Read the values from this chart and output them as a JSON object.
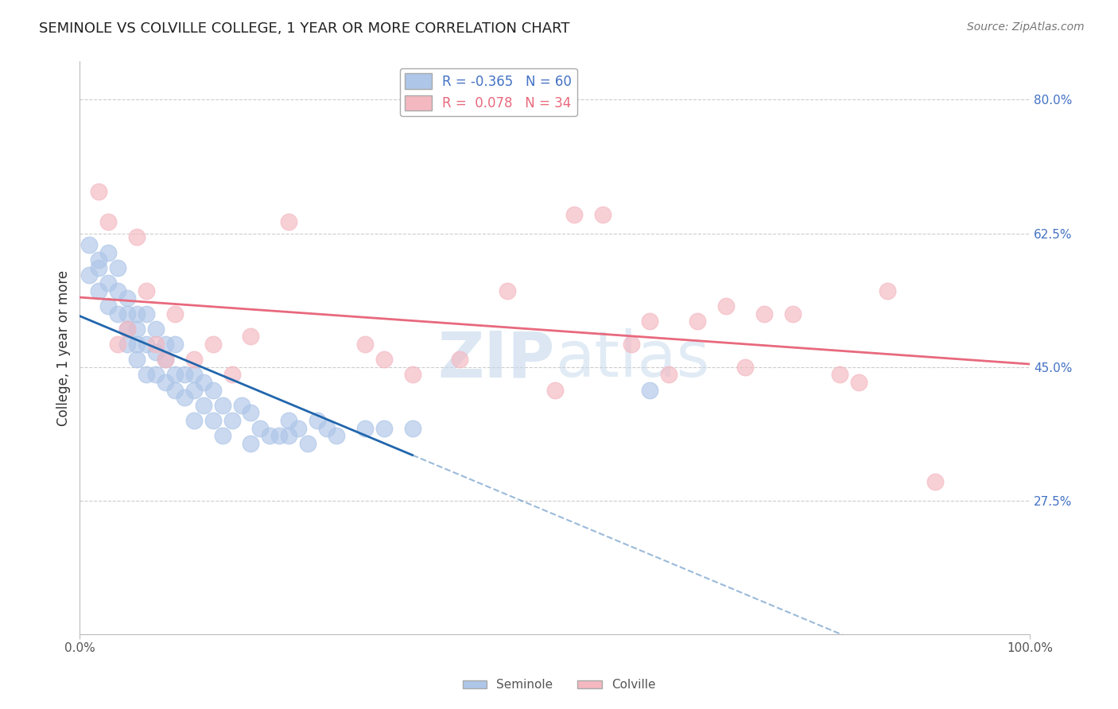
{
  "title": "SEMINOLE VS COLVILLE COLLEGE, 1 YEAR OR MORE CORRELATION CHART",
  "source": "Source: ZipAtlas.com",
  "ylabel": "College, 1 year or more",
  "ylabel_right_labels": [
    "80.0%",
    "62.5%",
    "45.0%",
    "27.5%"
  ],
  "ylabel_right_values": [
    0.8,
    0.625,
    0.45,
    0.275
  ],
  "xmin": 0.0,
  "xmax": 1.0,
  "ymin": 0.1,
  "ymax": 0.85,
  "seminole_color": "#aec6e8",
  "colville_color": "#f4b8c1",
  "seminole_line_color": "#2166ac",
  "colville_line_color": "#e8697d",
  "seminole_R": -0.365,
  "seminole_N": 60,
  "colville_R": 0.078,
  "colville_N": 34,
  "background_color": "#ffffff",
  "grid_color": "#cccccc",
  "seminole_x": [
    0.01,
    0.01,
    0.02,
    0.02,
    0.02,
    0.03,
    0.03,
    0.03,
    0.04,
    0.04,
    0.04,
    0.05,
    0.05,
    0.05,
    0.05,
    0.06,
    0.06,
    0.06,
    0.06,
    0.07,
    0.07,
    0.07,
    0.08,
    0.08,
    0.08,
    0.09,
    0.09,
    0.09,
    0.1,
    0.1,
    0.1,
    0.11,
    0.11,
    0.12,
    0.12,
    0.12,
    0.13,
    0.13,
    0.14,
    0.14,
    0.15,
    0.15,
    0.16,
    0.17,
    0.18,
    0.18,
    0.19,
    0.2,
    0.21,
    0.22,
    0.22,
    0.23,
    0.24,
    0.25,
    0.26,
    0.27,
    0.3,
    0.32,
    0.35,
    0.6
  ],
  "seminole_y": [
    0.61,
    0.57,
    0.59,
    0.55,
    0.58,
    0.6,
    0.56,
    0.53,
    0.55,
    0.58,
    0.52,
    0.54,
    0.5,
    0.48,
    0.52,
    0.5,
    0.52,
    0.46,
    0.48,
    0.52,
    0.48,
    0.44,
    0.47,
    0.5,
    0.44,
    0.46,
    0.48,
    0.43,
    0.48,
    0.44,
    0.42,
    0.44,
    0.41,
    0.44,
    0.42,
    0.38,
    0.4,
    0.43,
    0.42,
    0.38,
    0.4,
    0.36,
    0.38,
    0.4,
    0.39,
    0.35,
    0.37,
    0.36,
    0.36,
    0.38,
    0.36,
    0.37,
    0.35,
    0.38,
    0.37,
    0.36,
    0.37,
    0.37,
    0.37,
    0.42
  ],
  "colville_x": [
    0.02,
    0.03,
    0.04,
    0.05,
    0.06,
    0.07,
    0.08,
    0.09,
    0.1,
    0.12,
    0.14,
    0.16,
    0.18,
    0.22,
    0.3,
    0.32,
    0.35,
    0.4,
    0.45,
    0.5,
    0.52,
    0.55,
    0.58,
    0.6,
    0.62,
    0.65,
    0.68,
    0.7,
    0.72,
    0.75,
    0.8,
    0.82,
    0.85,
    0.9
  ],
  "colville_y": [
    0.68,
    0.64,
    0.48,
    0.5,
    0.62,
    0.55,
    0.48,
    0.46,
    0.52,
    0.46,
    0.48,
    0.44,
    0.49,
    0.64,
    0.48,
    0.46,
    0.44,
    0.46,
    0.55,
    0.42,
    0.65,
    0.65,
    0.48,
    0.51,
    0.44,
    0.51,
    0.53,
    0.45,
    0.52,
    0.52,
    0.44,
    0.43,
    0.55,
    0.3
  ]
}
